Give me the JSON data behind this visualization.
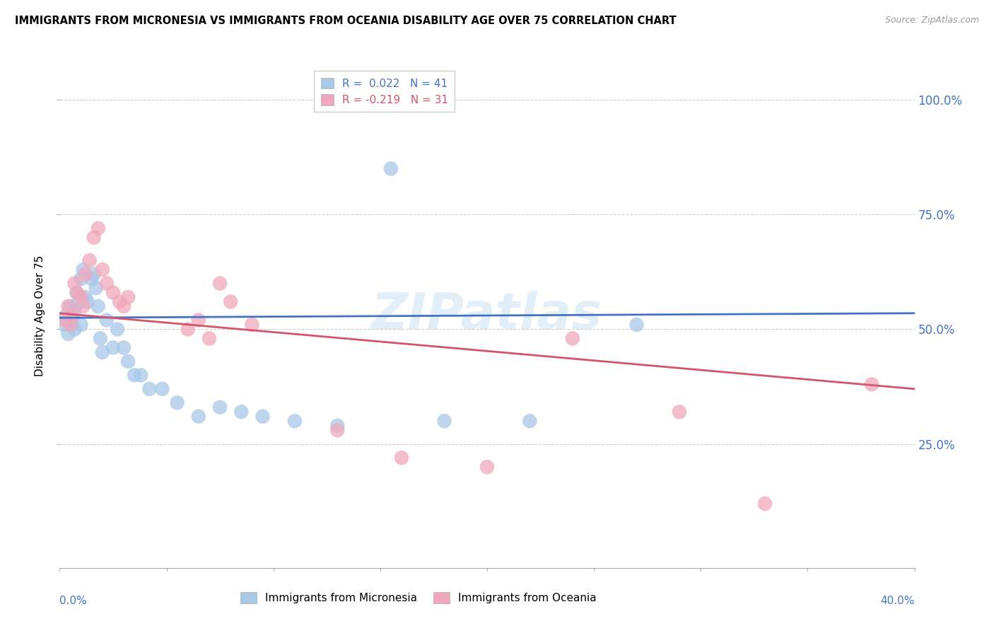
{
  "title": "IMMIGRANTS FROM MICRONESIA VS IMMIGRANTS FROM OCEANIA DISABILITY AGE OVER 75 CORRELATION CHART",
  "source": "Source: ZipAtlas.com",
  "ylabel": "Disability Age Over 75",
  "xlim": [
    0.0,
    0.4
  ],
  "ylim": [
    -0.02,
    1.08
  ],
  "yticks": [
    0.25,
    0.5,
    0.75,
    1.0
  ],
  "ytick_labels": [
    "25.0%",
    "50.0%",
    "75.0%",
    "100.0%"
  ],
  "watermark": "ZIPatlas",
  "legend1_label": "R =  0.022   N = 41",
  "legend2_label": "R = -0.219   N = 31",
  "micronesia_color": "#a8c8e8",
  "oceania_color": "#f0a8bc",
  "trend_micronesia_color": "#4472c4",
  "trend_oceania_color": "#d4546a",
  "micronesia_x": [
    0.002,
    0.003,
    0.004,
    0.005,
    0.005,
    0.006,
    0.007,
    0.007,
    0.008,
    0.009,
    0.01,
    0.01,
    0.011,
    0.012,
    0.013,
    0.015,
    0.016,
    0.017,
    0.018,
    0.019,
    0.02,
    0.022,
    0.025,
    0.027,
    0.03,
    0.032,
    0.035,
    0.038,
    0.042,
    0.048,
    0.055,
    0.065,
    0.075,
    0.085,
    0.095,
    0.11,
    0.13,
    0.155,
    0.18,
    0.22,
    0.27
  ],
  "micronesia_y": [
    0.51,
    0.53,
    0.49,
    0.55,
    0.52,
    0.52,
    0.54,
    0.5,
    0.58,
    0.56,
    0.51,
    0.61,
    0.63,
    0.57,
    0.56,
    0.61,
    0.62,
    0.59,
    0.55,
    0.48,
    0.45,
    0.52,
    0.46,
    0.5,
    0.46,
    0.43,
    0.4,
    0.4,
    0.37,
    0.37,
    0.34,
    0.31,
    0.33,
    0.32,
    0.31,
    0.3,
    0.29,
    0.85,
    0.3,
    0.3,
    0.51
  ],
  "oceania_x": [
    0.002,
    0.004,
    0.005,
    0.006,
    0.007,
    0.008,
    0.01,
    0.011,
    0.012,
    0.014,
    0.016,
    0.018,
    0.02,
    0.022,
    0.025,
    0.028,
    0.03,
    0.032,
    0.06,
    0.065,
    0.07,
    0.075,
    0.08,
    0.09,
    0.13,
    0.16,
    0.2,
    0.24,
    0.29,
    0.33,
    0.38
  ],
  "oceania_y": [
    0.52,
    0.55,
    0.51,
    0.53,
    0.6,
    0.58,
    0.57,
    0.55,
    0.62,
    0.65,
    0.7,
    0.72,
    0.63,
    0.6,
    0.58,
    0.56,
    0.55,
    0.57,
    0.5,
    0.52,
    0.48,
    0.6,
    0.56,
    0.51,
    0.28,
    0.22,
    0.2,
    0.48,
    0.32,
    0.12,
    0.38
  ]
}
